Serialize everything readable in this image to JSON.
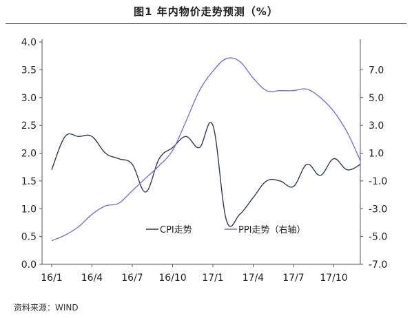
{
  "title": "图1  年内物价走势预测（%）",
  "source": "资料来源：WIND",
  "colors": {
    "cpi": "#2e3a55",
    "ppi": "#7b70d6",
    "axis": "#555555",
    "grid": "#d9d9d9"
  },
  "chart_data": {
    "type": "line",
    "title": "图1  年内物价走势预测（%）",
    "xlabel": "",
    "ylabel": "",
    "x_ticks": [
      "16/1",
      "16/4",
      "16/7",
      "16/10",
      "17/1",
      "17/4",
      "17/7",
      "17/10"
    ],
    "y_left_ticks": [
      "0.0",
      "0.5",
      "1.0",
      "1.5",
      "2.0",
      "2.5",
      "3.0",
      "3.5",
      "4.0"
    ],
    "y_right_ticks": [
      "-7.0",
      "-5.0",
      "-3.0",
      "-1.0",
      "1.0",
      "3.0",
      "5.0",
      "7.0"
    ],
    "ylim_left": [
      0,
      4
    ],
    "ylim_right": [
      -7,
      9
    ],
    "grid": false,
    "legend_position": "bottom-center",
    "series": [
      {
        "name": "CPI走势",
        "axis": "left",
        "x": [
          "2016-01",
          "2016-02",
          "2016-03",
          "2016-04",
          "2016-05",
          "2016-06",
          "2016-07",
          "2016-08",
          "2016-09",
          "2016-10",
          "2016-11",
          "2016-12",
          "2017-01",
          "2017-02",
          "2017-03",
          "2017-04",
          "2017-05",
          "2017-06",
          "2017-07",
          "2017-08",
          "2017-09",
          "2017-10",
          "2017-11",
          "2017-12"
        ],
        "values": [
          1.7,
          2.3,
          2.3,
          2.3,
          2.0,
          1.9,
          1.8,
          1.3,
          1.9,
          2.1,
          2.3,
          2.1,
          2.5,
          0.8,
          0.9,
          1.2,
          1.5,
          1.5,
          1.4,
          1.8,
          1.6,
          1.9,
          1.7,
          1.8
        ]
      },
      {
        "name": "PPI走势（右轴）",
        "axis": "right",
        "x": [
          "2016-01",
          "2016-02",
          "2016-03",
          "2016-04",
          "2016-05",
          "2016-06",
          "2016-07",
          "2016-08",
          "2016-09",
          "2016-10",
          "2016-11",
          "2016-12",
          "2017-01",
          "2017-02",
          "2017-03",
          "2017-04",
          "2017-05",
          "2017-06",
          "2017-07",
          "2017-08",
          "2017-09",
          "2017-10",
          "2017-11",
          "2017-12"
        ],
        "values": [
          -5.3,
          -4.9,
          -4.3,
          -3.4,
          -2.8,
          -2.6,
          -1.7,
          -0.8,
          0.1,
          1.2,
          3.3,
          5.5,
          6.9,
          7.8,
          7.6,
          6.4,
          5.5,
          5.5,
          5.5,
          5.6,
          5.0,
          4.0,
          2.5,
          0.4
        ]
      }
    ]
  }
}
